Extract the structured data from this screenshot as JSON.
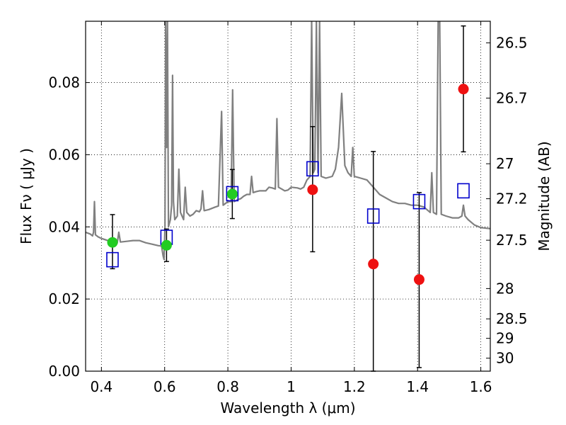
{
  "chart_data": {
    "type": "scatter",
    "xlabel": "Wavelength  λ (μm)",
    "ylabel": "Flux  Fν  ( μJy )",
    "y2label": "Magnitude (AB)",
    "xlim": [
      0.35,
      1.63
    ],
    "ylim": [
      0.0,
      0.097
    ],
    "grid": true,
    "x_ticks": [
      0.4,
      0.6,
      0.8,
      1.0,
      1.2,
      1.4,
      1.6
    ],
    "x_tick_labels": [
      "0.4",
      "0.6",
      "0.8",
      "1",
      "1.2",
      "1.4",
      "1.6"
    ],
    "y_ticks": [
      0.0,
      0.02,
      0.04,
      0.06,
      0.08
    ],
    "y_tick_labels": [
      "0.00",
      "0.02",
      "0.04",
      "0.06",
      "0.08"
    ],
    "y2_ticks": [
      {
        "label": "26.5",
        "flux": 0.091
      },
      {
        "label": "26.7",
        "flux": 0.0757
      },
      {
        "label": "27",
        "flux": 0.0575
      },
      {
        "label": "27.2",
        "flux": 0.0478
      },
      {
        "label": "27.5",
        "flux": 0.0363
      },
      {
        "label": "28",
        "flux": 0.0229
      },
      {
        "label": "28.5",
        "flux": 0.0145
      },
      {
        "label": "29",
        "flux": 0.0091
      },
      {
        "label": "30",
        "flux": 0.0036
      }
    ],
    "colors": {
      "model": "#808080",
      "green": "#22cc22",
      "red": "#ee1111",
      "box": "#0000cc",
      "errorbar": "#000000"
    },
    "series": [
      {
        "marker": "circle-green",
        "points": [
          {
            "x": 0.435,
            "y": 0.0357,
            "err_low": 0.0073,
            "err_high": 0.0077
          },
          {
            "x": 0.606,
            "y": 0.0349,
            "err_low": 0.0045,
            "err_high": 0.0045
          },
          {
            "x": 0.814,
            "y": 0.0491,
            "err_low": 0.0068,
            "err_high": 0.0068
          }
        ]
      },
      {
        "marker": "circle-red",
        "points": [
          {
            "x": 1.068,
            "y": 0.0503,
            "err_low": 0.0172,
            "err_high": 0.0175
          },
          {
            "x": 1.26,
            "y": 0.0297,
            "err_low": 0.0297,
            "err_high": 0.0312
          },
          {
            "x": 1.405,
            "y": 0.0254,
            "err_low": 0.0244,
            "err_high": 0.0241
          },
          {
            "x": 1.545,
            "y": 0.0782,
            "err_low": 0.0174,
            "err_high": 0.0175
          }
        ]
      },
      {
        "marker": "square-blue",
        "points": [
          {
            "x": 0.435,
            "y": 0.0309
          },
          {
            "x": 0.606,
            "y": 0.0371
          },
          {
            "x": 0.814,
            "y": 0.0492
          },
          {
            "x": 1.068,
            "y": 0.0561
          },
          {
            "x": 1.26,
            "y": 0.043
          },
          {
            "x": 1.405,
            "y": 0.047
          },
          {
            "x": 1.545,
            "y": 0.05
          }
        ]
      },
      {
        "marker": "line-gray",
        "points": [
          [
            0.35,
            0.0385
          ],
          [
            0.365,
            0.038
          ],
          [
            0.372,
            0.0375
          ],
          [
            0.375,
            0.0385
          ],
          [
            0.378,
            0.047
          ],
          [
            0.381,
            0.0378
          ],
          [
            0.39,
            0.0372
          ],
          [
            0.4,
            0.0368
          ],
          [
            0.42,
            0.0362
          ],
          [
            0.44,
            0.0358
          ],
          [
            0.45,
            0.0355
          ],
          [
            0.455,
            0.0385
          ],
          [
            0.46,
            0.0358
          ],
          [
            0.48,
            0.036
          ],
          [
            0.5,
            0.0362
          ],
          [
            0.52,
            0.0362
          ],
          [
            0.54,
            0.0356
          ],
          [
            0.56,
            0.0352
          ],
          [
            0.58,
            0.0348
          ],
          [
            0.59,
            0.0347
          ],
          [
            0.595,
            0.032
          ],
          [
            0.598,
            0.031
          ],
          [
            0.601,
            0.04
          ],
          [
            0.603,
            0.097
          ],
          [
            0.606,
            0.062
          ],
          [
            0.609,
            0.097
          ],
          [
            0.612,
            0.04
          ],
          [
            0.618,
            0.042
          ],
          [
            0.622,
            0.046
          ],
          [
            0.625,
            0.082
          ],
          [
            0.628,
            0.047
          ],
          [
            0.632,
            0.042
          ],
          [
            0.64,
            0.043
          ],
          [
            0.645,
            0.056
          ],
          [
            0.65,
            0.044
          ],
          [
            0.66,
            0.042
          ],
          [
            0.665,
            0.051
          ],
          [
            0.67,
            0.044
          ],
          [
            0.68,
            0.043
          ],
          [
            0.69,
            0.0435
          ],
          [
            0.7,
            0.0445
          ],
          [
            0.71,
            0.0442
          ],
          [
            0.715,
            0.045
          ],
          [
            0.72,
            0.05
          ],
          [
            0.725,
            0.0445
          ],
          [
            0.74,
            0.0448
          ],
          [
            0.76,
            0.0455
          ],
          [
            0.77,
            0.0458
          ],
          [
            0.78,
            0.072
          ],
          [
            0.785,
            0.046
          ],
          [
            0.8,
            0.047
          ],
          [
            0.81,
            0.047
          ],
          [
            0.815,
            0.078
          ],
          [
            0.82,
            0.047
          ],
          [
            0.83,
            0.0475
          ],
          [
            0.84,
            0.0478
          ],
          [
            0.85,
            0.0485
          ],
          [
            0.86,
            0.049
          ],
          [
            0.87,
            0.049
          ],
          [
            0.875,
            0.054
          ],
          [
            0.88,
            0.0495
          ],
          [
            0.89,
            0.0498
          ],
          [
            0.9,
            0.05
          ],
          [
            0.92,
            0.05
          ],
          [
            0.93,
            0.051
          ],
          [
            0.94,
            0.0508
          ],
          [
            0.95,
            0.0505
          ],
          [
            0.955,
            0.07
          ],
          [
            0.96,
            0.051
          ],
          [
            0.97,
            0.0505
          ],
          [
            0.98,
            0.05
          ],
          [
            0.99,
            0.0502
          ],
          [
            1.0,
            0.051
          ],
          [
            1.02,
            0.0508
          ],
          [
            1.03,
            0.0505
          ],
          [
            1.04,
            0.051
          ],
          [
            1.05,
            0.053
          ],
          [
            1.06,
            0.054
          ],
          [
            1.065,
            0.097
          ],
          [
            1.07,
            0.055
          ],
          [
            1.075,
            0.056
          ],
          [
            1.08,
            0.097
          ],
          [
            1.085,
            0.055
          ],
          [
            1.09,
            0.097
          ],
          [
            1.095,
            0.054
          ],
          [
            1.11,
            0.0535
          ],
          [
            1.13,
            0.054
          ],
          [
            1.14,
            0.056
          ],
          [
            1.15,
            0.062
          ],
          [
            1.16,
            0.077
          ],
          [
            1.17,
            0.057
          ],
          [
            1.18,
            0.055
          ],
          [
            1.19,
            0.054
          ],
          [
            1.195,
            0.062
          ],
          [
            1.2,
            0.054
          ],
          [
            1.22,
            0.0535
          ],
          [
            1.24,
            0.053
          ],
          [
            1.26,
            0.051
          ],
          [
            1.28,
            0.049
          ],
          [
            1.3,
            0.048
          ],
          [
            1.32,
            0.047
          ],
          [
            1.34,
            0.0465
          ],
          [
            1.36,
            0.0465
          ],
          [
            1.38,
            0.046
          ],
          [
            1.4,
            0.046
          ],
          [
            1.42,
            0.0455
          ],
          [
            1.44,
            0.044
          ],
          [
            1.445,
            0.055
          ],
          [
            1.45,
            0.044
          ],
          [
            1.46,
            0.0435
          ],
          [
            1.465,
            0.097
          ],
          [
            1.47,
            0.097
          ],
          [
            1.475,
            0.0435
          ],
          [
            1.49,
            0.043
          ],
          [
            1.51,
            0.0425
          ],
          [
            1.53,
            0.0425
          ],
          [
            1.54,
            0.043
          ],
          [
            1.545,
            0.046
          ],
          [
            1.55,
            0.043
          ],
          [
            1.56,
            0.042
          ],
          [
            1.58,
            0.0405
          ],
          [
            1.6,
            0.0398
          ],
          [
            1.63,
            0.0395
          ]
        ]
      }
    ]
  }
}
